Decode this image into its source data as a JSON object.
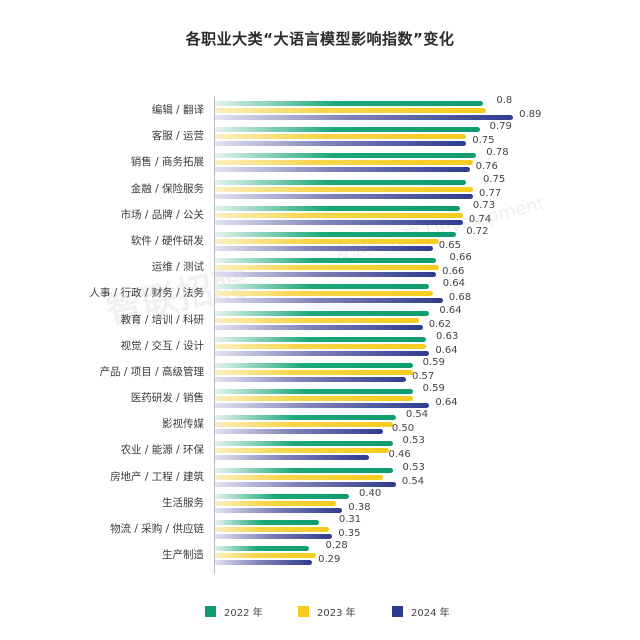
{
  "title": "各职业大类“大语言模型影响指数”变化",
  "watermark": {
    "left": "智联招聘",
    "right": "发展研究院 Development"
  },
  "colors": {
    "2022": "#0f9c6e",
    "2023": "#f5cc1e",
    "2024": "#2e3b8e"
  },
  "legend": [
    {
      "label": "2022 年",
      "color": "#0f9c6e"
    },
    {
      "label": "2023 年",
      "color": "#f5cc1e"
    },
    {
      "label": "2024 年",
      "color": "#2e3b8e"
    }
  ],
  "chart_data": {
    "type": "bar",
    "orientation": "horizontal",
    "title": "各职业大类“大语言模型影响指数”变化",
    "xlabel": "",
    "ylabel": "",
    "xlim": [
      0,
      1
    ],
    "grid": false,
    "legend_position": "bottom",
    "categories": [
      "编辑 / 翻译",
      "客服 / 运营",
      "销售 / 商务拓展",
      "金融 / 保险服务",
      "市场 / 品牌 / 公关",
      "软件 / 硬件研发",
      "运维 / 测试",
      "人事 / 行政 / 财务 / 法务",
      "教育 / 培训 / 科研",
      "视觉 / 交互 / 设计",
      "产品 / 项目 / 高级管理",
      "医药研发 / 销售",
      "影视传媒",
      "农业 / 能源 / 环保",
      "房地产 / 工程 / 建筑",
      "生活服务",
      "物流 / 采购 / 供应链",
      "生产制造"
    ],
    "series": [
      {
        "name": "2022 年",
        "values": [
          0.8,
          0.79,
          0.78,
          0.75,
          0.73,
          0.72,
          0.66,
          0.64,
          0.64,
          0.63,
          0.59,
          0.59,
          0.54,
          0.53,
          0.53,
          0.4,
          0.31,
          0.28
        ],
        "labeled": true
      },
      {
        "name": "2023 年",
        "values": [
          0.81,
          0.75,
          0.77,
          0.77,
          0.74,
          0.67,
          0.67,
          0.65,
          0.61,
          0.63,
          0.59,
          0.59,
          0.53,
          0.52,
          0.5,
          0.36,
          0.34,
          0.3
        ],
        "labeled": false,
        "note": "estimated from bar length; not labeled in image"
      },
      {
        "name": "2024 年",
        "values": [
          0.89,
          0.75,
          0.76,
          0.77,
          0.74,
          0.65,
          0.66,
          0.68,
          0.62,
          0.64,
          0.57,
          0.64,
          0.5,
          0.46,
          0.54,
          0.38,
          0.35,
          0.29
        ],
        "labeled": true
      }
    ],
    "value_labels": [
      [
        "0.8",
        "0.89"
      ],
      [
        "0.79",
        "0.75"
      ],
      [
        "0.78",
        "0.76"
      ],
      [
        "0.75",
        "0.77"
      ],
      [
        "0.73",
        "0.74"
      ],
      [
        "0.72",
        "0.65"
      ],
      [
        "0.66",
        "0.66"
      ],
      [
        "0.64",
        "0.68"
      ],
      [
        "0.64",
        "0.62"
      ],
      [
        "0.63",
        "0.64"
      ],
      [
        "0.59",
        "0.57"
      ],
      [
        "0.59",
        "0.64"
      ],
      [
        "0.54",
        "0.50"
      ],
      [
        "0.53",
        "0.46"
      ],
      [
        "0.53",
        "0.54"
      ],
      [
        "0.40",
        "0.38"
      ],
      [
        "0.31",
        "0.35"
      ],
      [
        "0.28",
        "0.29"
      ]
    ]
  }
}
